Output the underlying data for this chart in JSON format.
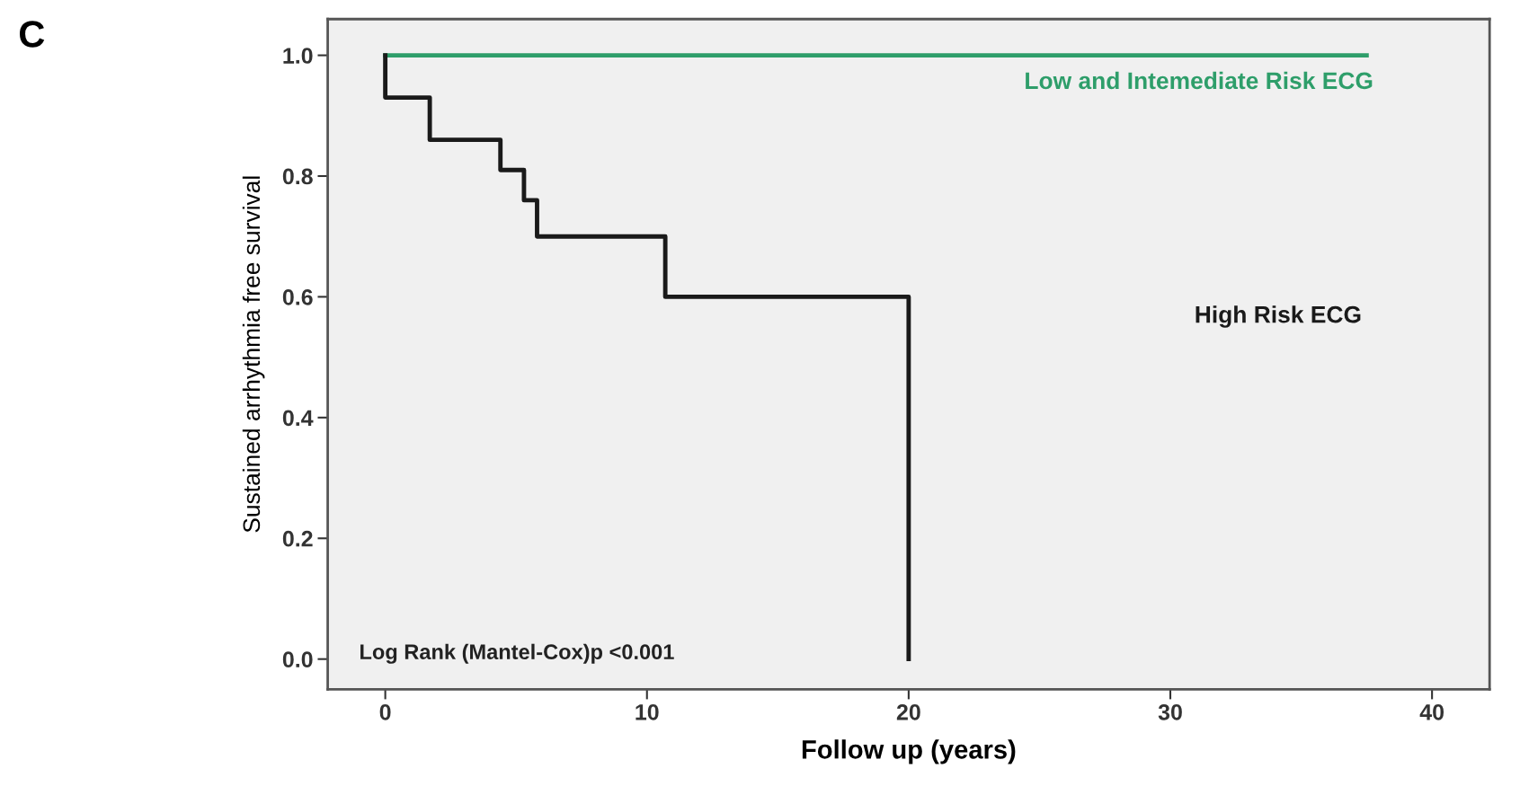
{
  "chart_data": {
    "type": "step",
    "title": "C",
    "xlabel": "Follow up (years)",
    "ylabel": "Sustained arrhythmia free survival",
    "series": [
      {
        "name": "Low and Intemediate Risk ECG",
        "color": "#2e9e6a",
        "x": [
          0,
          37.5
        ],
        "values": [
          1.0,
          1.0
        ]
      },
      {
        "name": "High Risk ECG",
        "color": "#1a1a1a",
        "x": [
          0,
          0,
          1.7,
          4.4,
          5.3,
          5.8,
          10.7,
          20,
          20
        ],
        "values": [
          1.0,
          0.93,
          0.86,
          0.81,
          0.76,
          0.7,
          0.6,
          0.6,
          0.0
        ]
      }
    ],
    "annotations": [
      "Log Rank (Mantel-Cox)p <0.001"
    ],
    "xlim": [
      -2.2,
      42.2
    ],
    "ylim": [
      -0.05,
      1.06
    ],
    "xticks": [
      0,
      10,
      20,
      30,
      40
    ],
    "yticks": [
      {
        "value": 0,
        "label": "0.0"
      },
      {
        "value": 0.2,
        "label": "0.2"
      },
      {
        "value": 0.4,
        "label": "0.4"
      },
      {
        "value": 0.6,
        "label": "0.6"
      },
      {
        "value": 0.8,
        "label": "0.8"
      },
      {
        "value": 1.0,
        "label": "1.0"
      }
    ],
    "grid": false,
    "legend": false
  }
}
